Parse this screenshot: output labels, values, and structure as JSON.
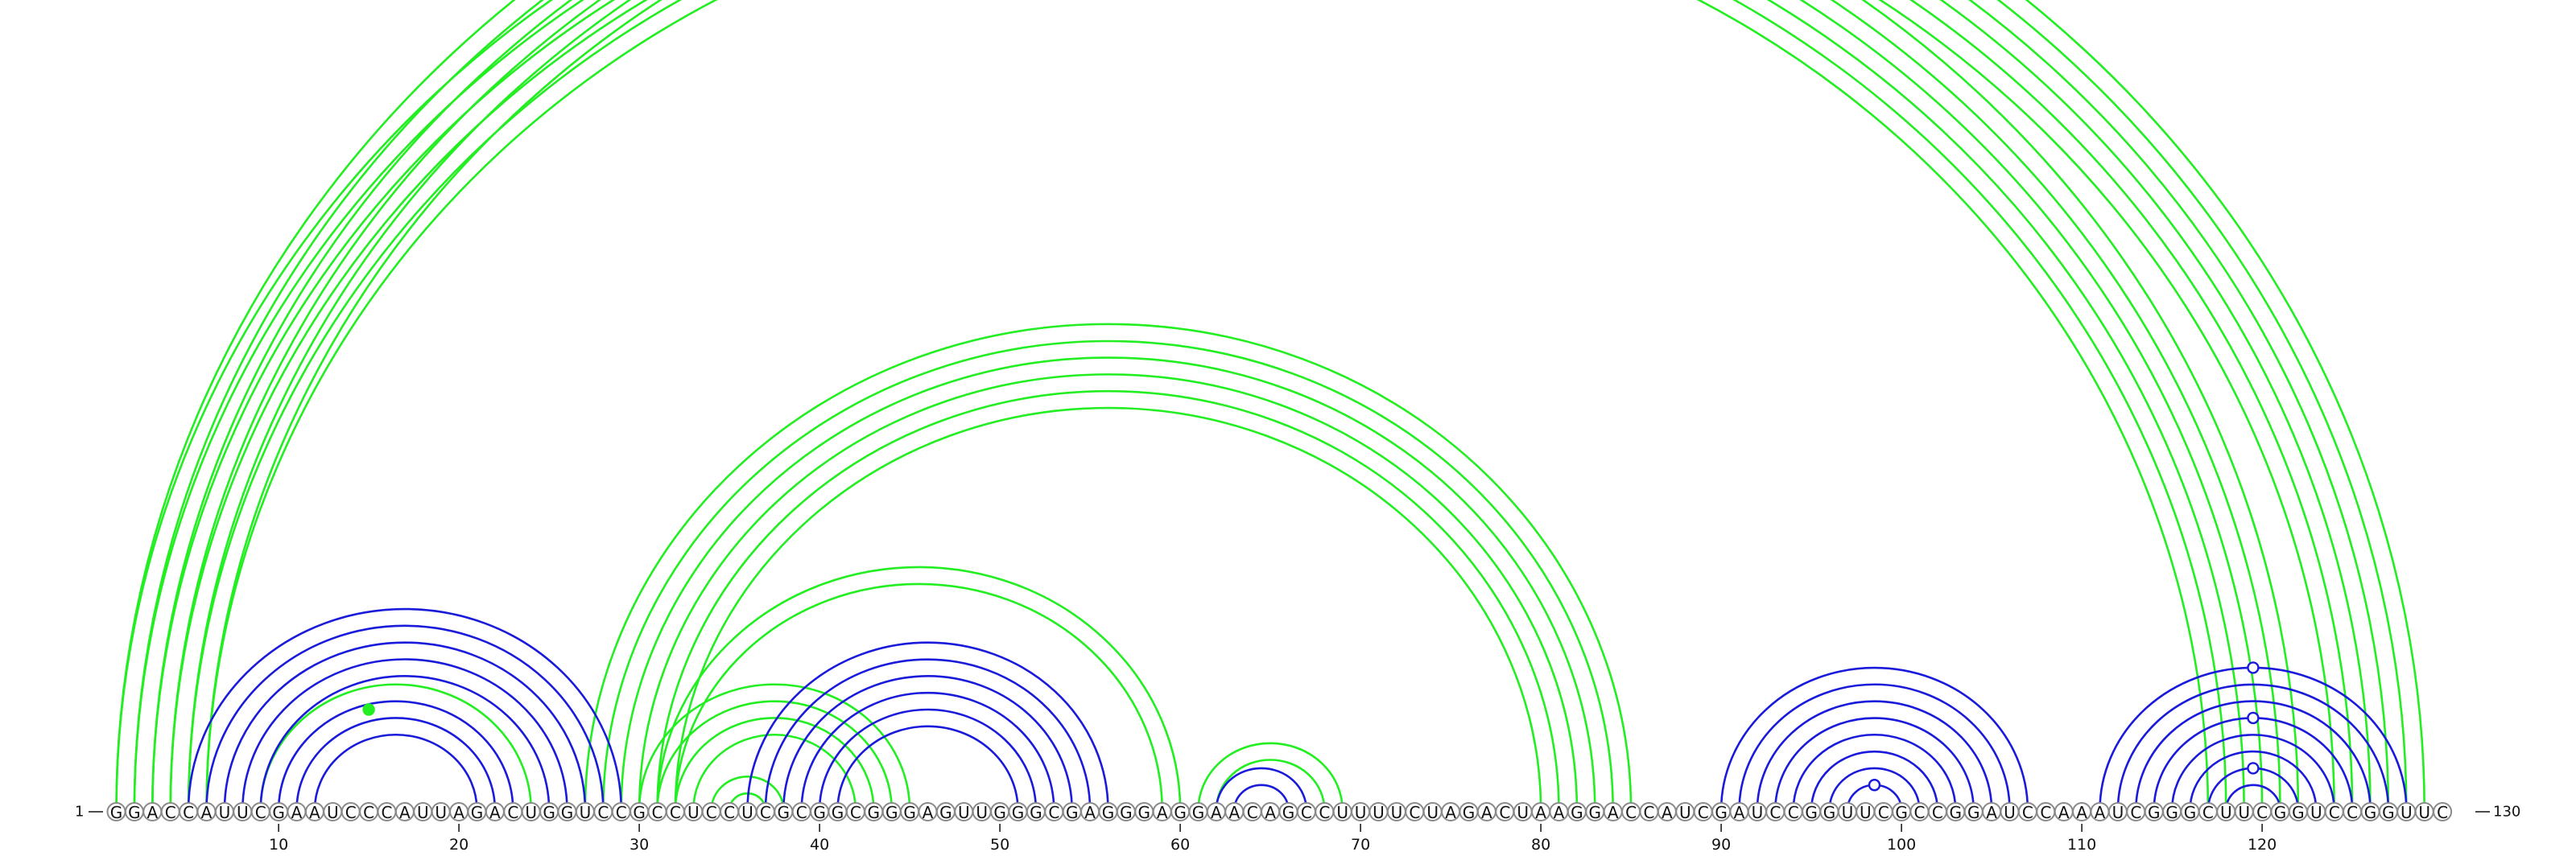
{
  "diagram": {
    "type": "rna-arc-diagram",
    "sequence": "GGACCAUUCGAAUCCCAUUAGACUGGUCCGCCUCCUCGCGGCGGGAGUUGGGCGAGGGAGGAACAGCCUUUUCUAGACUAAGGACCAUCGAUCCGGUUCGCCGGAUCCAAAUCGGGCUUCGGUCCGGUUC",
    "start_label": "1",
    "end_label": "130",
    "ticks": [
      10,
      20,
      30,
      40,
      50,
      60,
      70,
      80,
      90,
      100,
      110,
      120
    ],
    "colors": {
      "green": "#22ee22",
      "blue": "#1a1adb",
      "circle_stroke": "#8a8a8a"
    },
    "arcs": [
      {
        "i": 1,
        "j": 122,
        "color": "green",
        "width": 2.4
      },
      {
        "i": 1,
        "j": 129,
        "color": "green",
        "width": 2.0
      },
      {
        "i": 2,
        "j": 121,
        "color": "green",
        "width": 3.2
      },
      {
        "i": 2,
        "j": 128,
        "color": "green",
        "width": 2.0
      },
      {
        "i": 3,
        "j": 120,
        "color": "green",
        "width": 3.2
      },
      {
        "i": 3,
        "j": 127,
        "color": "green",
        "width": 2.6
      },
      {
        "i": 4,
        "j": 119,
        "color": "green",
        "width": 3.2
      },
      {
        "i": 4,
        "j": 126,
        "color": "green",
        "width": 2.6
      },
      {
        "i": 5,
        "j": 118,
        "color": "green",
        "width": 3.2
      },
      {
        "i": 5,
        "j": 125,
        "color": "green",
        "width": 2.6
      },
      {
        "i": 6,
        "j": 117,
        "color": "green",
        "width": 3.2
      },
      {
        "i": 6,
        "j": 124,
        "color": "green",
        "width": 2.6
      },
      {
        "i": 27,
        "j": 85,
        "color": "green",
        "width": 2.0
      },
      {
        "i": 28,
        "j": 84,
        "color": "green",
        "width": 2.4
      },
      {
        "i": 29,
        "j": 83,
        "color": "green",
        "width": 3.0
      },
      {
        "i": 30,
        "j": 82,
        "color": "green",
        "width": 3.0
      },
      {
        "i": 31,
        "j": 81,
        "color": "green",
        "width": 3.2
      },
      {
        "i": 32,
        "j": 80,
        "color": "green",
        "width": 3.2
      },
      {
        "i": 31,
        "j": 60,
        "color": "green",
        "width": 2.6
      },
      {
        "i": 32,
        "j": 59,
        "color": "green",
        "width": 2.6
      },
      {
        "i": 30,
        "j": 45,
        "color": "green",
        "width": 2.4
      },
      {
        "i": 31,
        "j": 44,
        "color": "green",
        "width": 2.4
      },
      {
        "i": 32,
        "j": 43,
        "color": "green",
        "width": 2.4
      },
      {
        "i": 33,
        "j": 42,
        "color": "green",
        "width": 2.4
      },
      {
        "i": 34,
        "j": 38,
        "color": "green",
        "width": 2.4
      },
      {
        "i": 35,
        "j": 37,
        "color": "green",
        "width": 2.4
      },
      {
        "i": 61,
        "j": 69,
        "color": "green",
        "width": 2.4
      },
      {
        "i": 62,
        "j": 68,
        "color": "green",
        "width": 2.4
      },
      {
        "i": 9,
        "j": 24,
        "color": "green",
        "width": 2.4
      },
      {
        "i": 5,
        "j": 29,
        "color": "blue",
        "width": 2.4
      },
      {
        "i": 6,
        "j": 28,
        "color": "blue",
        "width": 2.4
      },
      {
        "i": 7,
        "j": 27,
        "color": "blue",
        "width": 2.4
      },
      {
        "i": 8,
        "j": 26,
        "color": "blue",
        "width": 2.4
      },
      {
        "i": 9,
        "j": 25,
        "color": "blue",
        "width": 2.4
      },
      {
        "i": 10,
        "j": 23,
        "color": "blue",
        "width": 2.4
      },
      {
        "i": 11,
        "j": 22,
        "color": "blue",
        "width": 2.4
      },
      {
        "i": 12,
        "j": 21,
        "color": "blue",
        "width": 2.4
      },
      {
        "i": 36,
        "j": 56,
        "color": "blue",
        "width": 2.4
      },
      {
        "i": 37,
        "j": 55,
        "color": "blue",
        "width": 2.4
      },
      {
        "i": 38,
        "j": 54,
        "color": "blue",
        "width": 2.4
      },
      {
        "i": 39,
        "j": 53,
        "color": "blue",
        "width": 2.4
      },
      {
        "i": 40,
        "j": 52,
        "color": "blue",
        "width": 2.4
      },
      {
        "i": 41,
        "j": 51,
        "color": "blue",
        "width": 2.4
      },
      {
        "i": 62,
        "j": 67,
        "color": "blue",
        "width": 2.4
      },
      {
        "i": 63,
        "j": 66,
        "color": "blue",
        "width": 2.4
      },
      {
        "i": 90,
        "j": 107,
        "color": "blue",
        "width": 2.4
      },
      {
        "i": 91,
        "j": 106,
        "color": "blue",
        "width": 2.4
      },
      {
        "i": 92,
        "j": 105,
        "color": "blue",
        "width": 2.4
      },
      {
        "i": 93,
        "j": 104,
        "color": "blue",
        "width": 2.4
      },
      {
        "i": 94,
        "j": 103,
        "color": "blue",
        "width": 2.4
      },
      {
        "i": 95,
        "j": 102,
        "color": "blue",
        "width": 2.4
      },
      {
        "i": 96,
        "j": 101,
        "color": "blue",
        "width": 2.4
      },
      {
        "i": 97,
        "j": 100,
        "color": "blue",
        "width": 2.4
      },
      {
        "i": 111,
        "j": 128,
        "color": "blue",
        "width": 2.4
      },
      {
        "i": 112,
        "j": 127,
        "color": "blue",
        "width": 2.4
      },
      {
        "i": 113,
        "j": 126,
        "color": "blue",
        "width": 2.4
      },
      {
        "i": 114,
        "j": 125,
        "color": "blue",
        "width": 2.4
      },
      {
        "i": 115,
        "j": 124,
        "color": "blue",
        "width": 2.4
      },
      {
        "i": 116,
        "j": 123,
        "color": "blue",
        "width": 2.4
      },
      {
        "i": 117,
        "j": 122,
        "color": "blue",
        "width": 2.4
      },
      {
        "i": 118,
        "j": 121,
        "color": "blue",
        "width": 2.4
      }
    ],
    "markers": [
      {
        "center": 65.5,
        "pair": [
          1,
          130
        ],
        "color": "green",
        "fill": "open"
      },
      {
        "center": 15.0,
        "pair": [
          9,
          21
        ],
        "color": "green",
        "fill": "filled"
      },
      {
        "center": 98.5,
        "pair": [
          97,
          100
        ],
        "color": "blue",
        "fill": "open"
      },
      {
        "center": 119.5,
        "pair": [
          111,
          128
        ],
        "color": "blue",
        "fill": "open"
      },
      {
        "center": 119.5,
        "pair": [
          114,
          125
        ],
        "color": "blue",
        "fill": "open"
      },
      {
        "center": 119.5,
        "pair": [
          117,
          122
        ],
        "color": "blue",
        "fill": "open"
      }
    ]
  }
}
